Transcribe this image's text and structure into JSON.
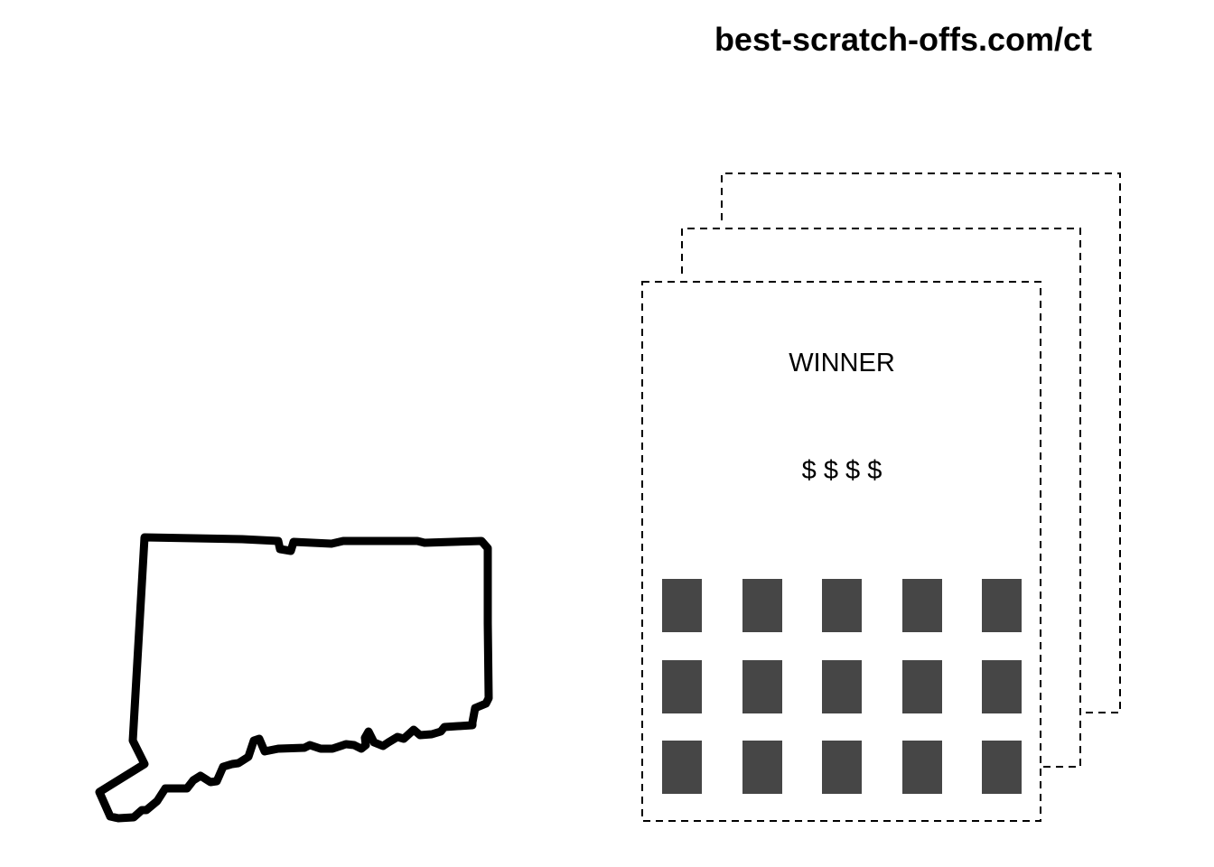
{
  "site": {
    "url": "best-scratch-offs.com/ct"
  },
  "state": {
    "name": "Connecticut",
    "outline_icon": "connecticut-outline-icon",
    "stroke_color": "#000000"
  },
  "ticket": {
    "headline": "WINNER",
    "prize": "$ $ $ $",
    "stack_count": 3,
    "border_style": "dashed",
    "scratch_grid": {
      "rows": 3,
      "columns": 5,
      "cell_color": "#464646"
    }
  }
}
